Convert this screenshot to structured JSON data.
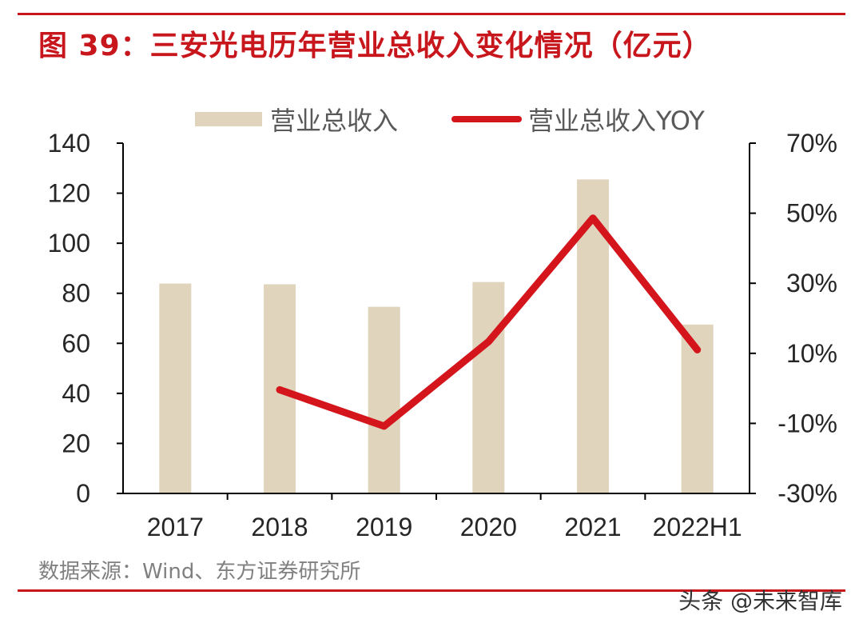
{
  "figure_title": "图 39：三安光电历年营业总收入变化情况（亿元）",
  "source_note": "数据来源：Wind、东方证券研究所",
  "watermark": "头条 @未来智库",
  "chart_data": {
    "type": "bar",
    "categories": [
      "2017",
      "2018",
      "2019",
      "2020",
      "2021",
      "2022H1"
    ],
    "series": [
      {
        "name": "营业总收入",
        "type": "bar",
        "axis": "left",
        "values": [
          83.9,
          83.6,
          74.6,
          84.5,
          125.5,
          67.5
        ],
        "color": "#e0d4bd"
      },
      {
        "name": "营业总收入YOY",
        "type": "line",
        "axis": "right",
        "values": [
          null,
          -0.4,
          -10.8,
          13.3,
          48.6,
          11.0
        ],
        "color": "#d4161c"
      }
    ],
    "yleft": {
      "lim": [
        0,
        140
      ],
      "ticks": [
        "0",
        "20",
        "40",
        "60",
        "80",
        "100",
        "120",
        "140"
      ]
    },
    "yright": {
      "lim": [
        -30,
        70
      ],
      "ticks": [
        "-30%",
        "-10%",
        "10%",
        "30%",
        "50%",
        "70%"
      ]
    },
    "legend_position": "top-center",
    "grid": false
  }
}
